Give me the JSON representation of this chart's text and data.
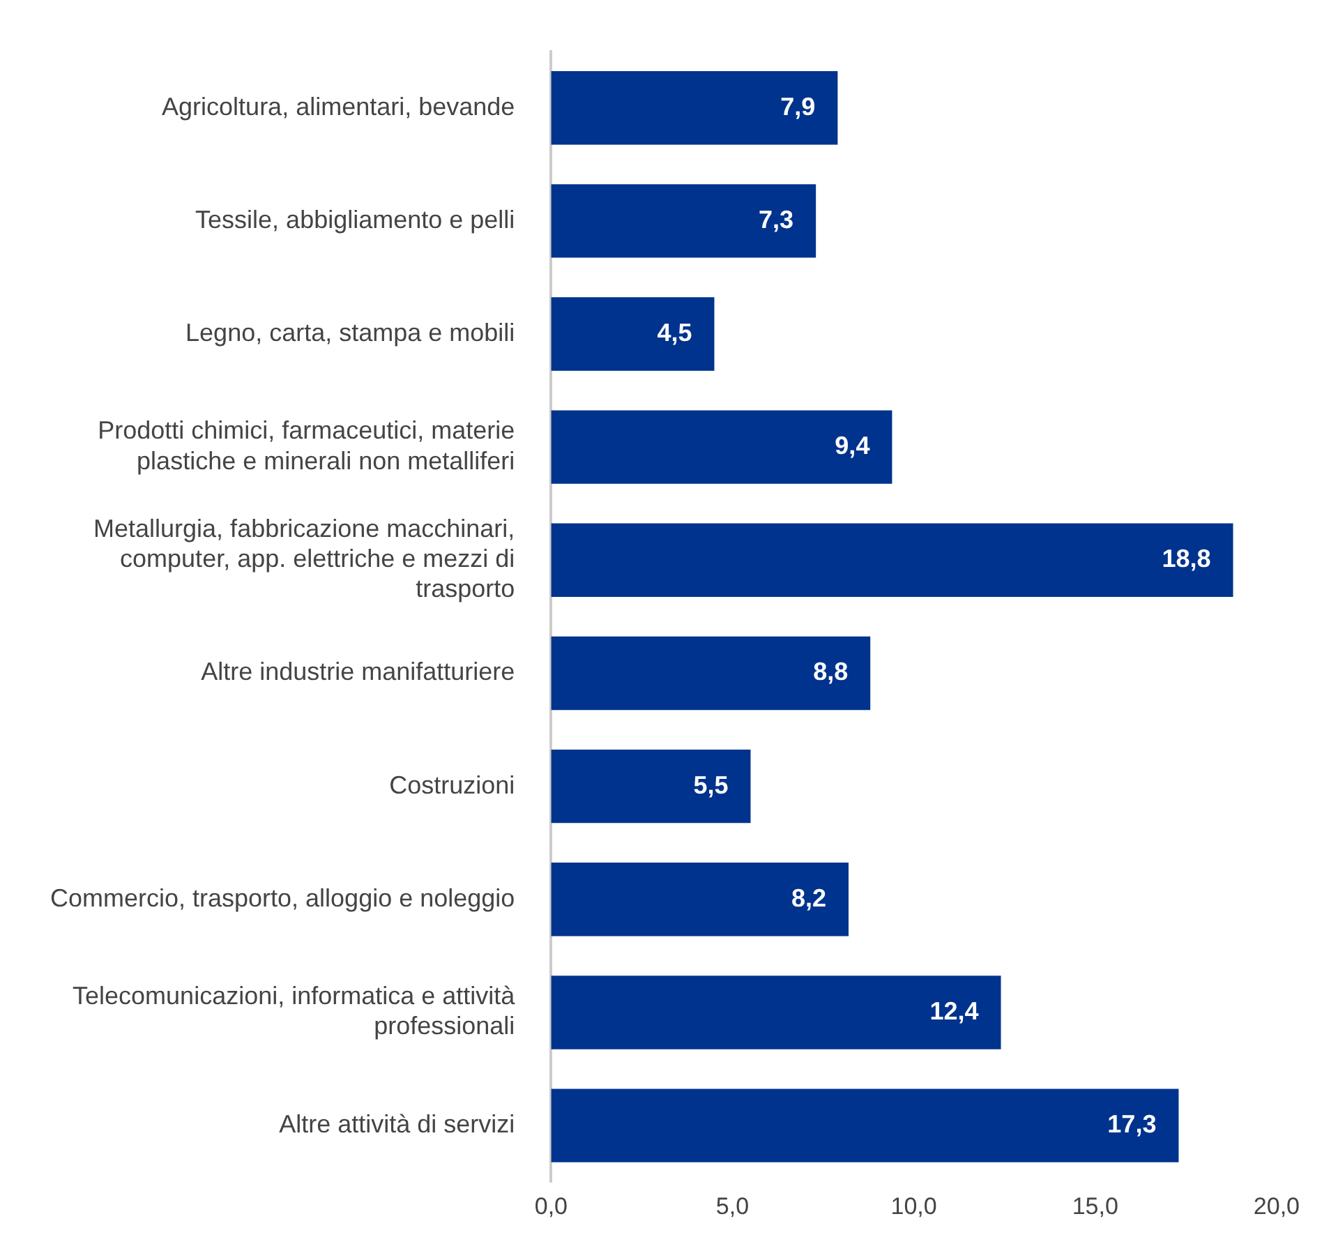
{
  "chart_data": {
    "type": "bar",
    "orientation": "horizontal",
    "categories": [
      "Agricoltura, alimentari, bevande",
      "Tessile, abbigliamento e pelli",
      "Legno, carta, stampa e mobili",
      "Prodotti chimici, farmaceutici, materie plastiche e minerali non metalliferi",
      "Metallurgia, fabbricazione macchinari, computer, app. elettriche e mezzi di trasporto",
      "Altre industrie manifatturiere",
      "Costruzioni",
      "Commercio, trasporto, alloggio e noleggio",
      "Telecomunicazioni, informatica e attività professionali",
      "Altre attività di servizi"
    ],
    "values": [
      7.9,
      7.3,
      4.5,
      9.4,
      18.8,
      8.8,
      5.5,
      8.2,
      12.4,
      17.3
    ],
    "value_labels": [
      "7,9",
      "7,3",
      "4,5",
      "9,4",
      "18,8",
      "8,8",
      "5,5",
      "8,2",
      "12,4",
      "17,3"
    ],
    "color": "#00338d",
    "xlim": [
      0,
      20
    ],
    "xticks": [
      {
        "value": 0,
        "label": "0,0"
      },
      {
        "value": 5,
        "label": "5,0"
      },
      {
        "value": 10,
        "label": "10,0"
      },
      {
        "value": 15,
        "label": "15,0"
      },
      {
        "value": 20,
        "label": "20,0"
      }
    ],
    "grid": false,
    "legend": false
  }
}
